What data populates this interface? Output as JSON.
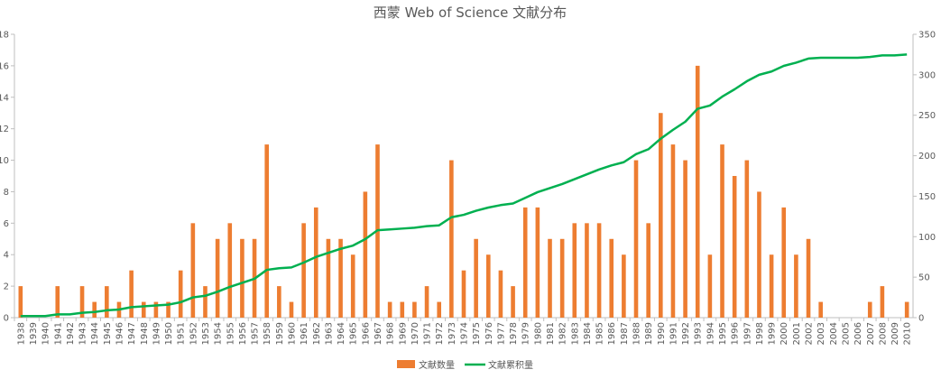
{
  "chart_data": {
    "type": "bar+line",
    "title": "西蒙 Web of Science 文献分布",
    "categories": [
      "1938",
      "1939",
      "1940",
      "1941",
      "1942",
      "1943",
      "1944",
      "1945",
      "1946",
      "1947",
      "1948",
      "1949",
      "1950",
      "1951",
      "1952",
      "1953",
      "1954",
      "1955",
      "1956",
      "1957",
      "1958",
      "1959",
      "1960",
      "1961",
      "1962",
      "1963",
      "1964",
      "1965",
      "1966",
      "1967",
      "1968",
      "1969",
      "1970",
      "1971",
      "1972",
      "1973",
      "1974",
      "1975",
      "1976",
      "1977",
      "1978",
      "1979",
      "1980",
      "1981",
      "1982",
      "1983",
      "1984",
      "1985",
      "1986",
      "1987",
      "1988",
      "1989",
      "1990",
      "1991",
      "1992",
      "1993",
      "1994",
      "1995",
      "1996",
      "1997",
      "1998",
      "1999",
      "2000",
      "2001",
      "2002",
      "2003",
      "2004",
      "2005",
      "2006",
      "2007",
      "2008",
      "2009",
      "2010"
    ],
    "series": [
      {
        "name": "文献数量",
        "type": "bar",
        "axis": "left",
        "color": "#ED7D31",
        "values": [
          2,
          0,
          0,
          2,
          0,
          2,
          1,
          2,
          1,
          3,
          1,
          1,
          1,
          3,
          6,
          2,
          5,
          6,
          5,
          5,
          11,
          2,
          1,
          6,
          7,
          5,
          5,
          4,
          8,
          11,
          1,
          1,
          1,
          2,
          1,
          10,
          3,
          5,
          4,
          3,
          2,
          7,
          7,
          5,
          5,
          6,
          6,
          6,
          5,
          4,
          10,
          6,
          13,
          11,
          10,
          16,
          4,
          11,
          9,
          10,
          8,
          4,
          7,
          4,
          5,
          1,
          0,
          0,
          0,
          1,
          2,
          0,
          1
        ]
      },
      {
        "name": "文献累积量",
        "type": "line",
        "axis": "right",
        "color": "#00B050",
        "values": [
          2,
          2,
          2,
          4,
          4,
          6,
          7,
          9,
          10,
          13,
          14,
          15,
          16,
          19,
          25,
          27,
          32,
          38,
          43,
          48,
          59,
          61,
          62,
          68,
          75,
          80,
          85,
          89,
          97,
          108,
          109,
          110,
          111,
          113,
          114,
          124,
          127,
          132,
          136,
          139,
          141,
          148,
          155,
          160,
          165,
          171,
          177,
          183,
          188,
          192,
          202,
          208,
          221,
          232,
          242,
          258,
          262,
          273,
          282,
          292,
          300,
          304,
          311,
          315,
          320,
          321,
          321,
          321,
          321,
          322,
          324,
          324,
          325
        ]
      }
    ],
    "y_left": {
      "min": 0,
      "max": 18,
      "ticks": [
        0,
        2,
        4,
        6,
        8,
        10,
        12,
        14,
        16,
        18
      ]
    },
    "y_right": {
      "min": 0,
      "max": 350,
      "ticks": [
        0,
        50,
        100,
        150,
        200,
        250,
        300,
        350
      ]
    },
    "grid": false,
    "legend_position": "bottom"
  }
}
